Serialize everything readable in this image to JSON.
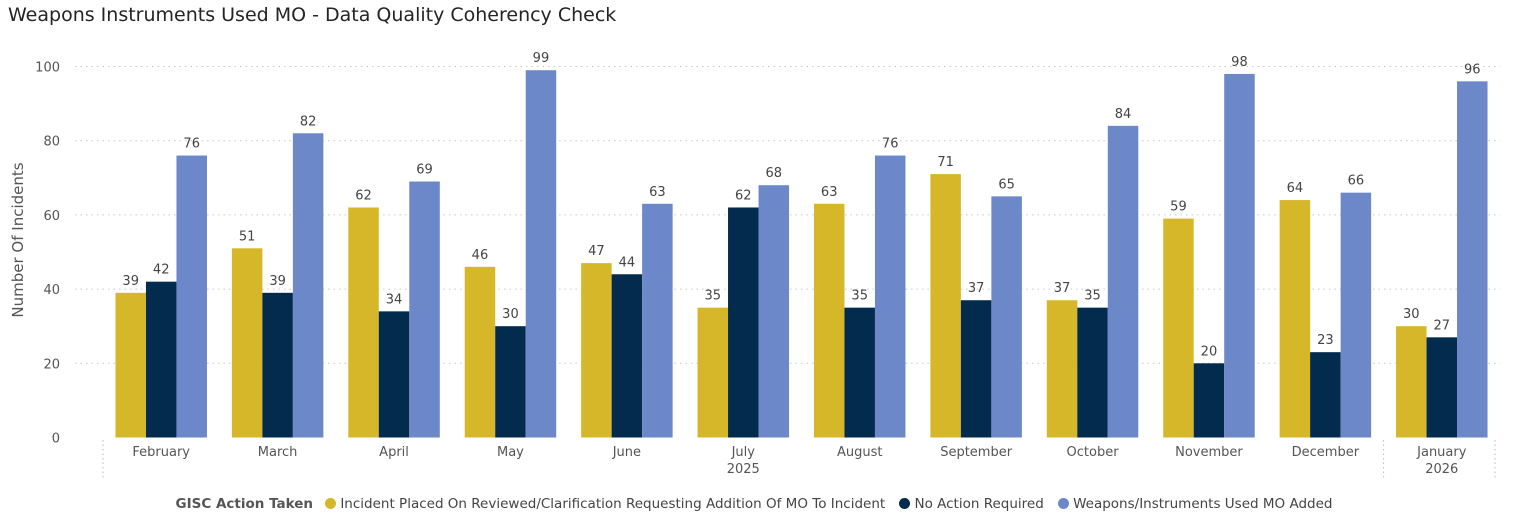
{
  "colors": {
    "incident_placed": "#D7B72A",
    "no_action": "#032B4E",
    "mo_added": "#6C88C9",
    "grid": "#c8c8c8",
    "axis_text": "#555555"
  },
  "chart_data": {
    "type": "bar",
    "title": "Weapons Instruments Used MO - Data Quality Coherency Check",
    "ylabel": "Number Of Incidents",
    "xlabel": "",
    "ylim": [
      0,
      100
    ],
    "yticks": [
      0,
      20,
      40,
      60,
      80,
      100
    ],
    "grid": true,
    "categories": [
      "February",
      "March",
      "April",
      "May",
      "June",
      "July",
      "August",
      "September",
      "October",
      "November",
      "December",
      "January"
    ],
    "year_groups": [
      {
        "label": "2025",
        "under": "July"
      },
      {
        "label": "2026",
        "under": "January"
      }
    ],
    "legend_title": "GISC Action Taken",
    "legend_position": "bottom",
    "series": [
      {
        "name": "Incident Placed On Reviewed/Clarification Requesting Addition Of MO To Incident",
        "color_key": "incident_placed",
        "values": [
          39,
          51,
          62,
          46,
          47,
          35,
          63,
          71,
          37,
          59,
          64,
          30
        ]
      },
      {
        "name": "No Action Required",
        "color_key": "no_action",
        "values": [
          42,
          39,
          34,
          30,
          44,
          62,
          35,
          37,
          35,
          20,
          23,
          27
        ]
      },
      {
        "name": "Weapons/Instruments Used MO Added",
        "color_key": "mo_added",
        "values": [
          76,
          82,
          69,
          99,
          63,
          68,
          76,
          65,
          84,
          98,
          66,
          96
        ]
      }
    ]
  }
}
